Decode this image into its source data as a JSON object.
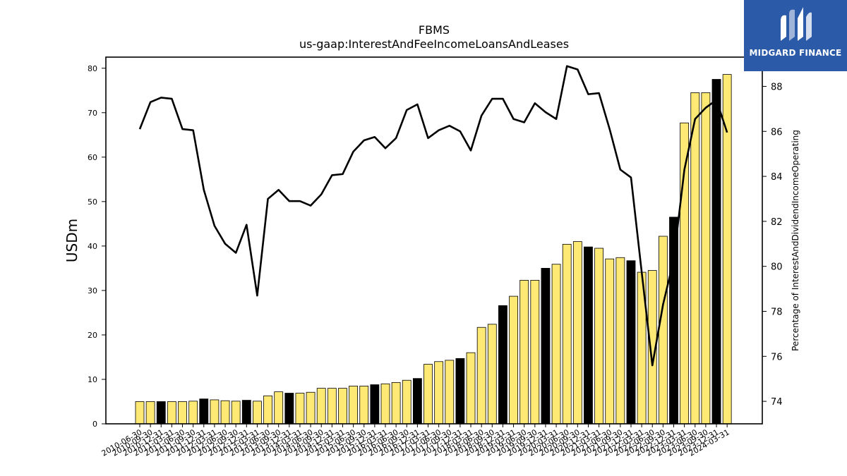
{
  "chart_data": {
    "type": "bar",
    "title": "FBMS",
    "subtitle": "us-gaap:InterestAndFeeIncomeLoansAndLeases",
    "ylabel": "USDm",
    "y2label": "Percentage of InterestAndDividendIncomeOperating",
    "ylim": [
      0,
      82.5
    ],
    "y2lim": [
      73,
      89.3
    ],
    "yticks": [
      0,
      10,
      20,
      30,
      40,
      50,
      60,
      70,
      80
    ],
    "y2ticks": [
      74,
      76,
      78,
      80,
      82,
      84,
      86,
      88
    ],
    "colors": {
      "bar_quarter": "#fde974",
      "bar_year": "#000000",
      "line": "#000000"
    },
    "categories": [
      "2010-06-30",
      "2010-09-30",
      "2010-12-31",
      "2011-03-31",
      "2011-06-30",
      "2011-09-30",
      "2011-12-31",
      "2012-03-31",
      "2012-06-30",
      "2012-09-30",
      "2012-12-31",
      "2013-03-31",
      "2013-06-30",
      "2013-09-30",
      "2013-12-31",
      "2014-03-31",
      "2014-06-30",
      "2014-09-30",
      "2014-12-31",
      "2015-03-31",
      "2015-06-30",
      "2015-09-30",
      "2015-12-31",
      "2016-03-31",
      "2016-06-30",
      "2016-09-30",
      "2016-12-31",
      "2017-03-31",
      "2017-06-30",
      "2017-09-30",
      "2017-12-31",
      "2018-03-31",
      "2018-06-30",
      "2018-09-30",
      "2018-12-31",
      "2019-03-31",
      "2019-06-30",
      "2019-09-30",
      "2019-12-31",
      "2020-03-31",
      "2020-06-30",
      "2020-09-30",
      "2020-12-31",
      "2021-03-31",
      "2021-06-30",
      "2021-09-30",
      "2021-12-31",
      "2022-03-31",
      "2022-06-30",
      "2022-09-30",
      "2022-12-31",
      "2023-03-31",
      "2023-06-30",
      "2023-09-30",
      "2023-12-31",
      "2024-03-31"
    ],
    "x_tick_labels": [
      "2010-06-30",
      "2010-09-30",
      "2010-12-31",
      "2011-03-31",
      "2011-06-30",
      "2011-09-30",
      "2011-12-31",
      "2012-03-31",
      "2012-06-30",
      "2012-09-30",
      "2012-12-31",
      "2013-03-31",
      "2013-06-30",
      "2013-09-30",
      "2013-12-31",
      "2014-03-31",
      "2014-06-30",
      "2014-09-30",
      "2014-12-31",
      "2015-03-31",
      "2015-06-30",
      "2015-09-30",
      "2015-12-31",
      "2016-03-31",
      "2016-06-30",
      "2016-09-30",
      "2016-12-31",
      "2017-03-31",
      "2017-06-30",
      "2017-09-30",
      "2017-12-31",
      "2018-03-31",
      "2018-06-30",
      "2018-09-30",
      "2018-12-31",
      "2019-03-31",
      "2019-06-30",
      "2019-09-30",
      "2019-12-31",
      "2020-03-31",
      "2020-06-30",
      "2020-09-30",
      "2020-12-31",
      "2021-03-31",
      "2021-06-30",
      "2021-09-30",
      "2021-12-31",
      "2022-03-31",
      "2022-06-30",
      "2022-09-30",
      "2022-12-31",
      "2023-03-31",
      "2023-06-30",
      "2023-09-30",
      "2023-12-31",
      "2024-03-31"
    ],
    "values": [
      5.0,
      5.0,
      5.0,
      5.0,
      5.0,
      5.1,
      5.6,
      5.4,
      5.2,
      5.1,
      5.3,
      5.1,
      6.3,
      7.2,
      6.9,
      6.9,
      7.1,
      8.0,
      8.0,
      8.0,
      8.5,
      8.5,
      8.8,
      9.0,
      9.3,
      9.8,
      10.2,
      13.4,
      14.0,
      14.3,
      14.7,
      16.0,
      21.7,
      22.4,
      26.6,
      28.7,
      32.3,
      32.3,
      35.0,
      35.9,
      40.4,
      41.0,
      39.8,
      39.5,
      37.1,
      37.4,
      36.7,
      34.1,
      34.5,
      42.2,
      46.5,
      67.7,
      74.5,
      74.5,
      77.5,
      78.6
    ],
    "bar_is_year_end": [
      false,
      false,
      true,
      false,
      false,
      false,
      true,
      false,
      false,
      false,
      true,
      false,
      false,
      false,
      true,
      false,
      false,
      false,
      false,
      false,
      false,
      false,
      true,
      false,
      false,
      false,
      true,
      false,
      false,
      false,
      true,
      false,
      false,
      false,
      true,
      false,
      false,
      false,
      true,
      false,
      false,
      false,
      true,
      false,
      false,
      false,
      true,
      false,
      false,
      false,
      true,
      false,
      false,
      false,
      true,
      false
    ],
    "series": [
      {
        "values": [
          86.1,
          87.3,
          87.5,
          87.45,
          86.1,
          86.05,
          83.4,
          81.8,
          81.0,
          80.6,
          81.85,
          78.7,
          83.0,
          83.4,
          82.9,
          82.9,
          82.7,
          83.2,
          84.05,
          84.1,
          85.1,
          85.6,
          85.75,
          85.25,
          85.7,
          86.95,
          87.2,
          85.7,
          86.05,
          86.25,
          86.0,
          85.15,
          86.7,
          87.45,
          87.45,
          86.55,
          86.4,
          87.25,
          86.85,
          86.55,
          88.9,
          88.75,
          87.65,
          87.7,
          86.1,
          84.3,
          83.95,
          79.75,
          75.6,
          78.3,
          80.3,
          84.3,
          86.55,
          87.05,
          87.4,
          85.95
        ]
      }
    ]
  },
  "logo": {
    "text": "MIDGARD FINANCE"
  }
}
